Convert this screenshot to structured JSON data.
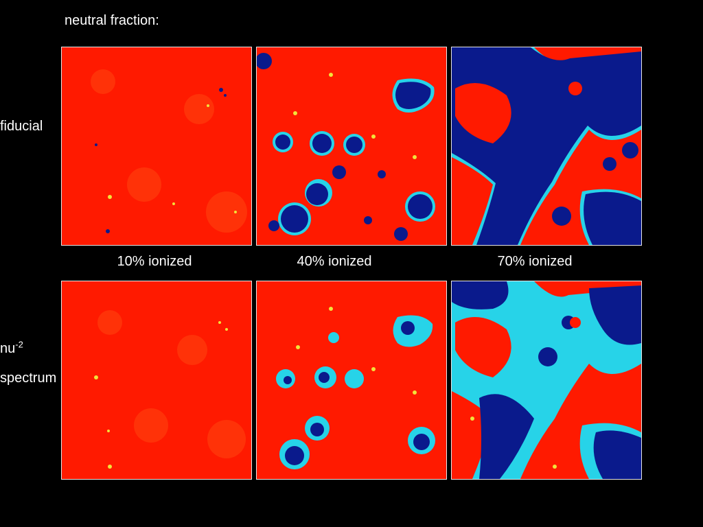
{
  "figure": {
    "title": "neutral fraction:",
    "rows": [
      {
        "label": "fiducial"
      },
      {
        "label_base": "nu",
        "label_sup": "-2",
        "label_line2": "spectrum"
      }
    ],
    "columns": [
      {
        "label": "10% ionized"
      },
      {
        "label": "40% ionized"
      },
      {
        "label": "70% ionized"
      }
    ],
    "colors": {
      "background": "#000000",
      "neutral": "#ff1a00",
      "ionized": "#0a1a8c",
      "edge_cyan": "#27d3e8",
      "edge_yellow": "#f2e33a"
    }
  }
}
